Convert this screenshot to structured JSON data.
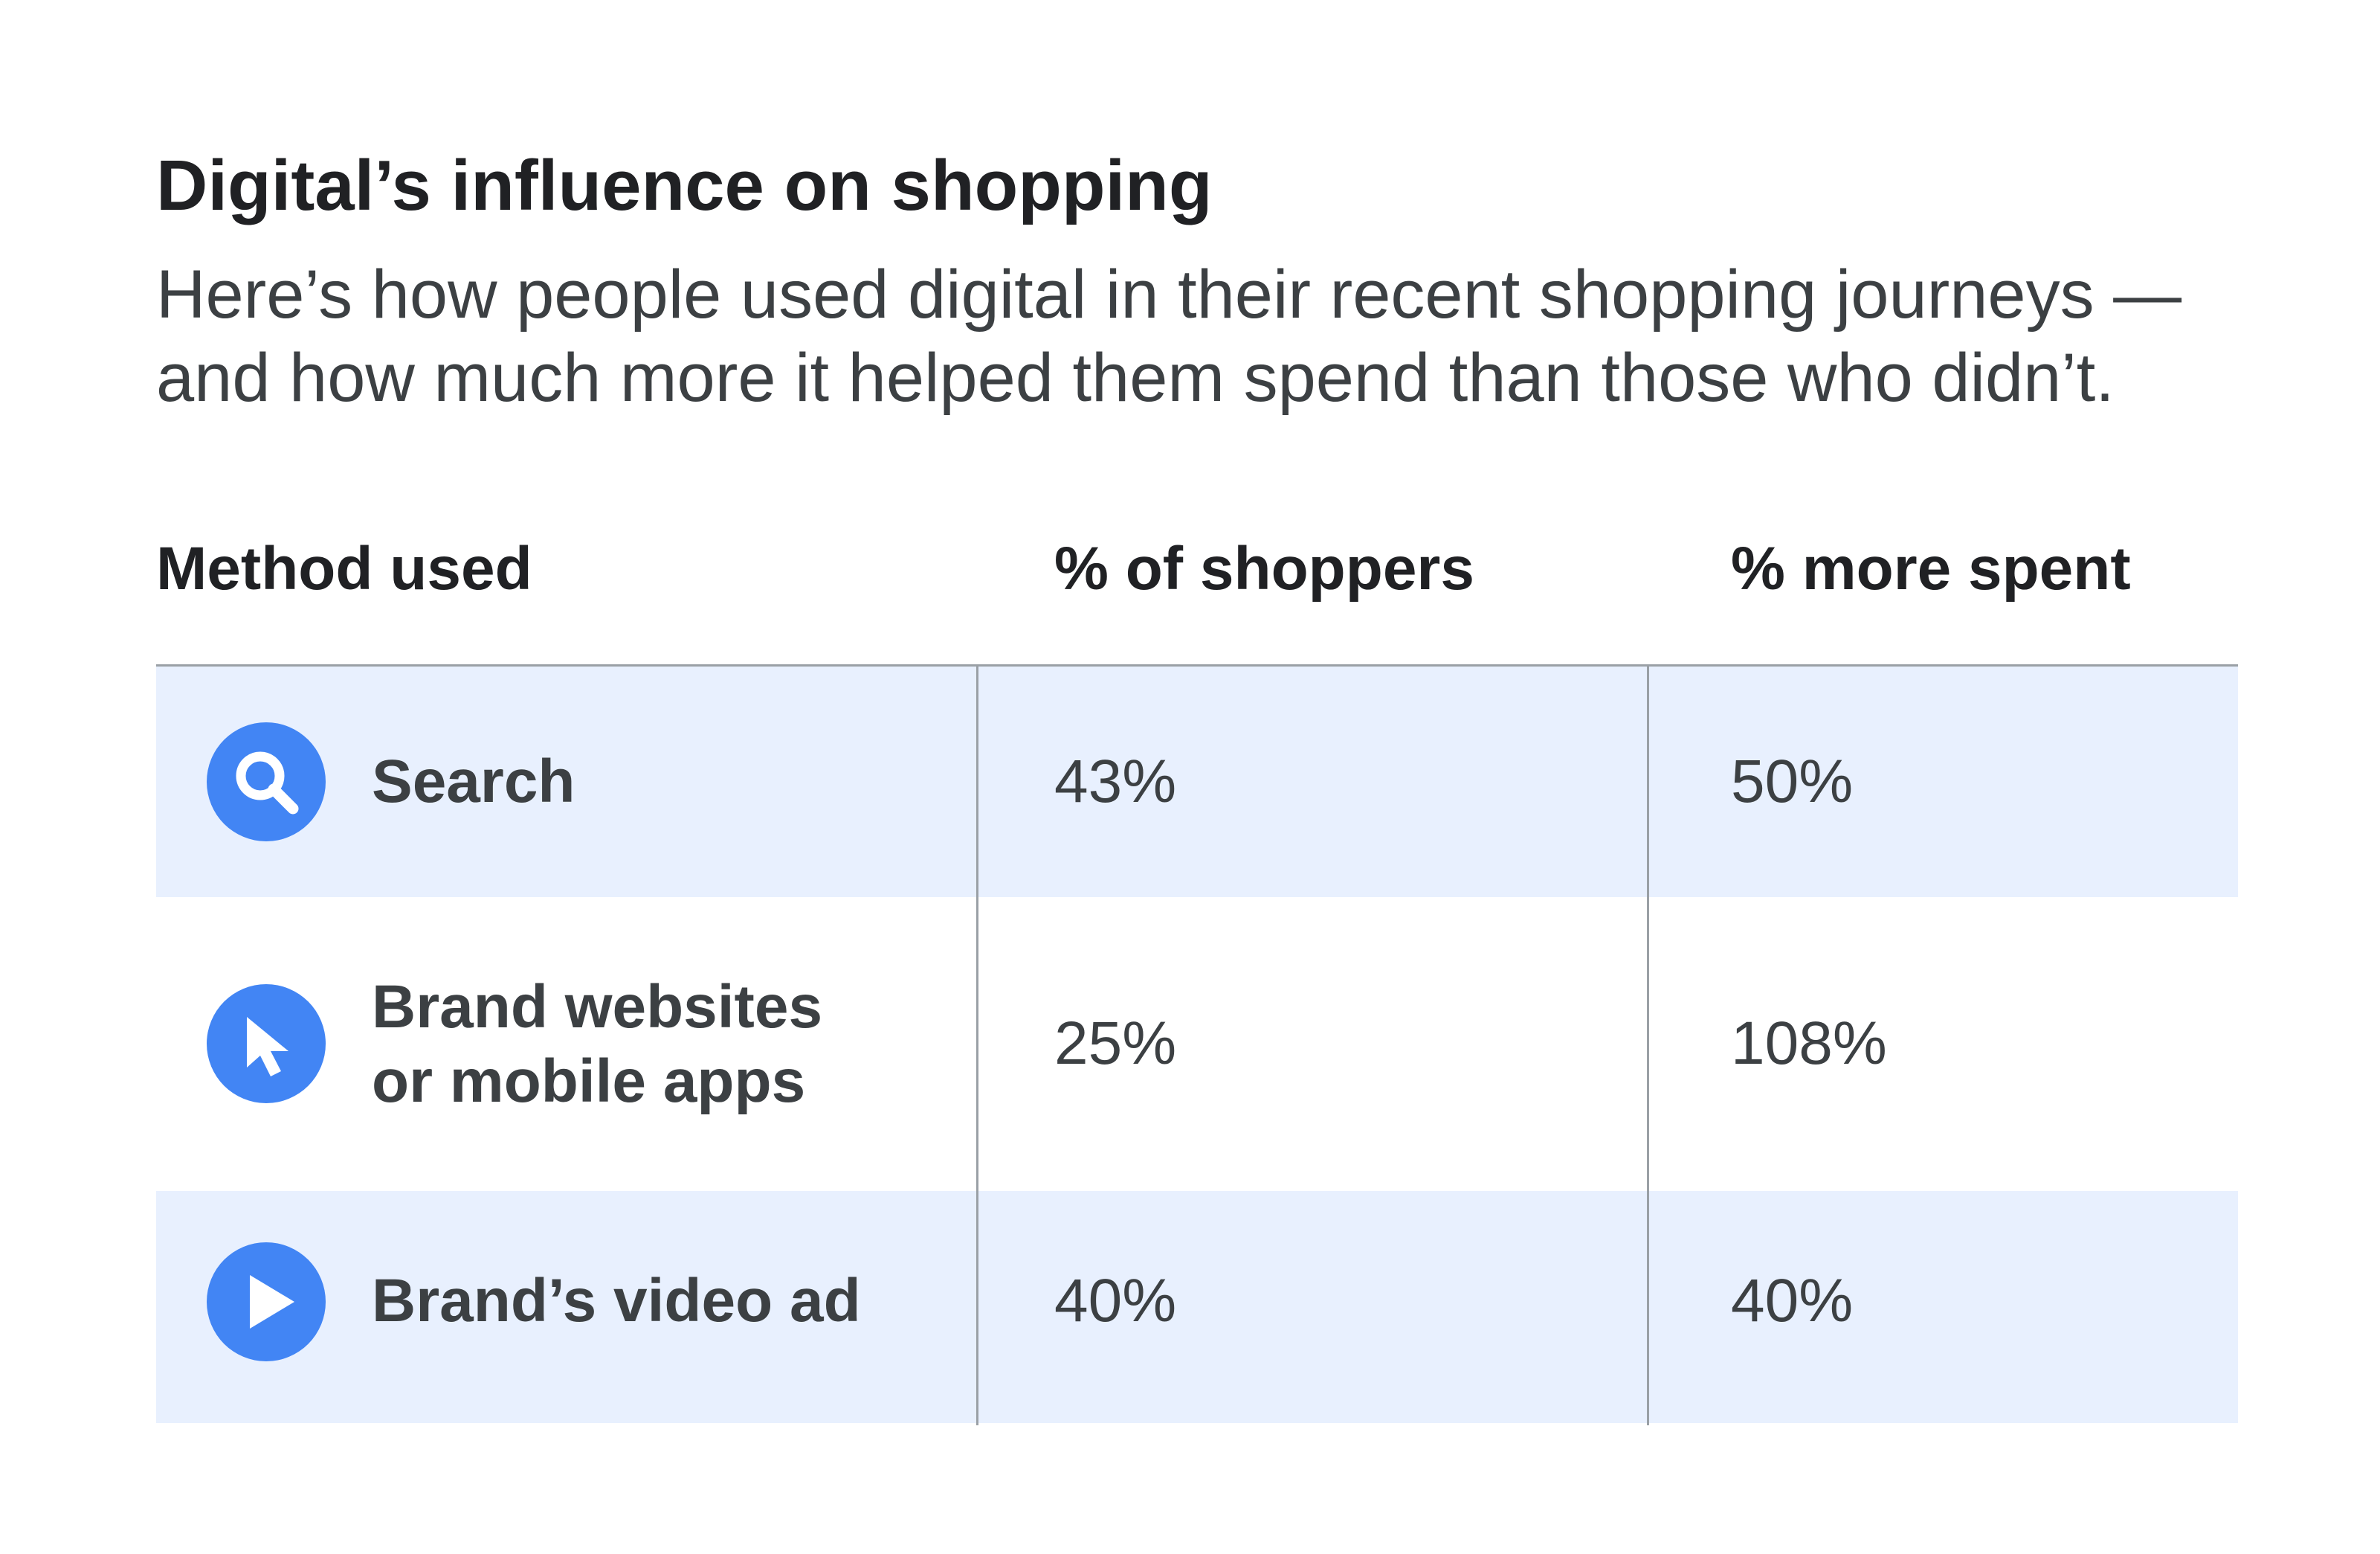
{
  "title": "Digital’s influence on shopping",
  "subtitle": {
    "line1": "Here’s how people used digital in their recent shopping journeys —",
    "line2": "and how much more it helped them spend than those who didn’t."
  },
  "colors": {
    "accent": "#4285f4",
    "row_shade": "#e8f0fe",
    "divider": "#9aa0a6",
    "text": "#202124"
  },
  "chart_data": {
    "type": "table",
    "title": "Digital’s influence on shopping",
    "columns": [
      "Method used",
      "% of shoppers",
      "% more spent"
    ],
    "rows": [
      {
        "icon": "search-icon",
        "method_lines": [
          "Search"
        ],
        "shoppers": "43%",
        "more_spent": "50%"
      },
      {
        "icon": "cursor-icon",
        "method_lines": [
          "Brand websites",
          "or mobile apps"
        ],
        "shoppers": "25%",
        "more_spent": "108%"
      },
      {
        "icon": "play-icon",
        "method_lines": [
          "Brand’s video ad"
        ],
        "shoppers": "40%",
        "more_spent": "40%"
      }
    ]
  }
}
